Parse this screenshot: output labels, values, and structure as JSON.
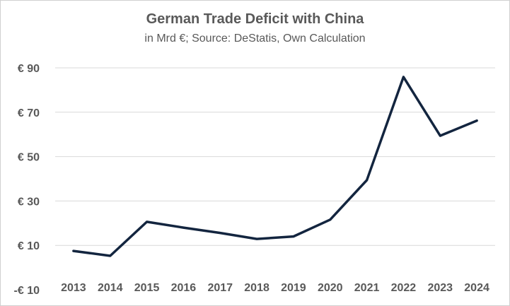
{
  "chart_data": {
    "type": "line",
    "title": "German Trade Deficit with China",
    "subtitle": "in Mrd €; Source: DeStatis, Own Calculation",
    "xlabel": "",
    "ylabel": "",
    "categories": [
      "2013",
      "2014",
      "2015",
      "2016",
      "2017",
      "2018",
      "2019",
      "2020",
      "2021",
      "2022",
      "2023",
      "2024"
    ],
    "series": [
      {
        "values": [
          7.5,
          5.3,
          20.6,
          18.0,
          15.6,
          12.9,
          14.0,
          21.6,
          39.4,
          85.9,
          59.4,
          66.2
        ]
      }
    ],
    "ylim": [
      -10,
      90
    ],
    "yticks": [
      -10,
      10,
      30,
      50,
      70,
      90
    ],
    "ytick_labels": [
      "-€ 10",
      "€ 10",
      "€ 30",
      "€ 50",
      "€ 70",
      "€ 90"
    ],
    "grid": true,
    "legend": "none",
    "line_color": "#13253f",
    "grid_color": "#d9d9d9"
  }
}
